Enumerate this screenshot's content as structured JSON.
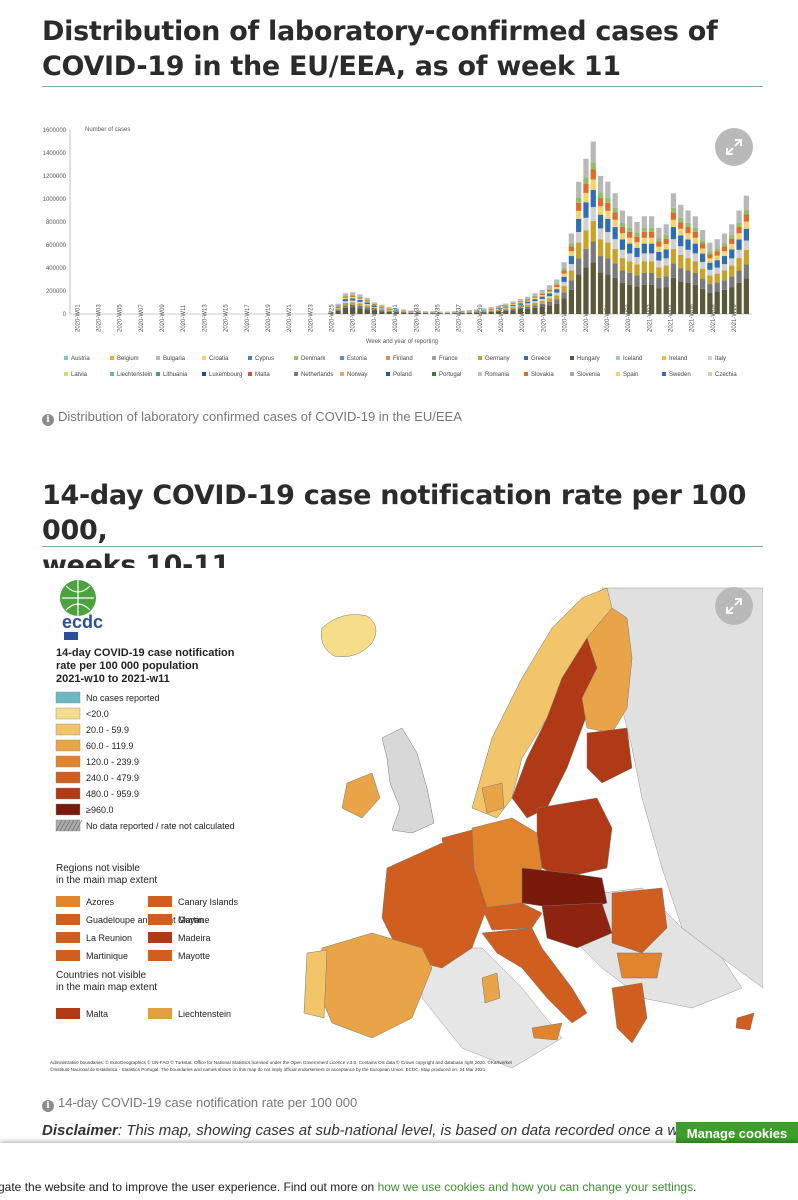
{
  "section1": {
    "title_line1": "Distribution of laboratory-confirmed cases of",
    "title_line2": "COVID-19 in the EU/EEA, as of week 11",
    "caption": "Distribution of laboratory confirmed cases of COVID-19 in the EU/EEA"
  },
  "section2": {
    "title_line1": "14-day COVID-19 case notification rate per 100 000,",
    "title_line2": "weeks 10-11",
    "caption": "14-day COVID-19 case notification rate per 100 000"
  },
  "icons": {
    "expand": "expand-icon",
    "info": "info-icon"
  },
  "chart_data": {
    "type": "bar",
    "stacked": true,
    "ylabel": "Number of cases",
    "xlabel": "Week and year of reporting",
    "ylim": [
      0,
      1600000
    ],
    "yticks": [
      "1600000",
      "1400000",
      "1200000",
      "1000000",
      "800000",
      "600000",
      "400000",
      "200000",
      "0"
    ],
    "legend_position": "bottom",
    "legend": [
      "Austria",
      "Belgium",
      "Bulgaria",
      "Croatia",
      "Cyprus",
      "Denmark",
      "Estonia",
      "Finland",
      "France",
      "Germany",
      "Greece",
      "Hungary",
      "Iceland",
      "Ireland",
      "Italy",
      "Latvia",
      "Liechtenstein",
      "Lithuania",
      "Luxembourg",
      "Malta",
      "Netherlands",
      "Norway",
      "Poland",
      "Portugal",
      "Romania",
      "Slovakia",
      "Slovenia",
      "Spain",
      "Sweden",
      "Czechia"
    ],
    "legend_colors": [
      "#7ec4cf",
      "#f0a830",
      "#b8b8b8",
      "#f5d27a",
      "#4a7fc1",
      "#8fbf6a",
      "#5b8fc9",
      "#e38b5a",
      "#9e9e9e",
      "#c9a227",
      "#2f6db5",
      "#5a5a3a",
      "#a3c4e0",
      "#f4b942",
      "#d0d0d0",
      "#e8d36a",
      "#6ab0c4",
      "#4d9a8a",
      "#1f4e9c",
      "#d2563b",
      "#7a7a7a",
      "#f7a35c",
      "#2c5aa0",
      "#3f7a3a",
      "#c0c0c0",
      "#e06a2a",
      "#a8a8a8",
      "#f3d36b",
      "#3b68b0",
      "#c8d89a"
    ],
    "series_note": "",
    "x": [
      "2020-W01",
      "2020-W03",
      "2020-W05",
      "2020-W07",
      "2020-W09",
      "2020-W11",
      "2020-W13",
      "2020-W15",
      "2020-W17",
      "2020-W19",
      "2020-W21",
      "2020-W23",
      "2020-W25",
      "2020-W27",
      "2020-W29",
      "2020-W31",
      "2020-W33",
      "2020-W35",
      "2020-W37",
      "2020-W39",
      "2020-W41",
      "2020-W43",
      "2020-W45",
      "2020-W47",
      "2020-W49",
      "2020-W51",
      "2020-W53",
      "2021-W02",
      "2021-W04",
      "2021-W06",
      "2021-W08",
      "2021-W10"
    ],
    "totals": [
      0,
      0,
      0,
      0,
      0,
      0,
      0,
      0,
      0,
      0,
      0,
      0,
      0,
      0,
      0,
      0,
      0,
      0,
      0,
      0,
      0,
      0,
      0,
      0,
      0,
      0,
      0,
      0,
      0,
      0,
      0,
      0,
      0,
      0,
      0,
      20000,
      90000,
      180000,
      190000,
      170000,
      140000,
      100000,
      80000,
      60000,
      50000,
      40000,
      30000,
      30000,
      25000,
      25000,
      22000,
      22000,
      25000,
      30000,
      35000,
      40000,
      50000,
      60000,
      70000,
      90000,
      110000,
      130000,
      150000,
      180000,
      210000,
      250000,
      300000,
      450000,
      700000,
      1150000,
      1350000,
      1500000,
      1200000,
      1150000,
      1050000,
      900000,
      850000,
      800000,
      850000,
      850000,
      750000,
      780000,
      1050000,
      950000,
      900000,
      850000,
      730000,
      620000,
      650000,
      700000,
      780000,
      900000,
      1030000
    ],
    "top_segment_ratios": [
      0.3,
      0.12,
      0.12,
      0.08,
      0.1,
      0.06,
      0.06,
      0.04,
      0.12
    ]
  },
  "map": {
    "logo_text": "ecdc",
    "legend_title_line1": "14-day COVID-19 case notification",
    "legend_title_line2": "rate per 100 000 population",
    "legend_title_line3": "2021-w10 to 2021-w11",
    "classes": [
      {
        "label": "No cases reported",
        "color": "#6bb8c4"
      },
      {
        "label": "<20.0",
        "color": "#f6dd8a"
      },
      {
        "label": "20.0 - 59.9",
        "color": "#f2c56a"
      },
      {
        "label": "60.0 - 119.9",
        "color": "#eaa448"
      },
      {
        "label": "120.0 - 239.9",
        "color": "#e0842e"
      },
      {
        "label": "240.0 - 479.9",
        "color": "#cf5e1f"
      },
      {
        "label": "480.0 - 959.9",
        "color": "#b03a16"
      },
      {
        "label": "≥960.0",
        "color": "#7a1a0a"
      },
      {
        "label": "No data reported / rate not calculated",
        "color": "#aaaaaa"
      }
    ],
    "regions_title_line1": "Regions not visible",
    "regions_title_line2": "in the main map extent",
    "regions": [
      {
        "label": "Azores",
        "color": "#e0842e"
      },
      {
        "label": "Canary Islands",
        "color": "#cf5e1f"
      },
      {
        "label": "Guadeloupe and Saint Martin",
        "color": "#cf5e1f"
      },
      {
        "label": "Guyane",
        "color": "#cf5e1f"
      },
      {
        "label": "La Reunion",
        "color": "#cf5e1f"
      },
      {
        "label": "Madeira",
        "color": "#b03a16"
      },
      {
        "label": "Martinique",
        "color": "#cf5e1f"
      },
      {
        "label": "Mayotte",
        "color": "#cf5e1f"
      }
    ],
    "countries_title_line1": "Countries not visible",
    "countries_title_line2": "in the main map extent",
    "countries": [
      {
        "label": "Malta",
        "color": "#b03a16"
      },
      {
        "label": "Liechtenstein",
        "color": "#e0a040"
      }
    ],
    "credit_line1": "Administrative boundaries: © EuroGeographics © UN-FAO © Turkstat. Office for National Statistics licensed under the Open Government Licence v.3.0. Contains OS data © Crown copyright and database right 2020. ©Kartverket",
    "credit_line2": "©Instituto Nacional de Estatística - Statistics Portugal. The boundaries and names shown on this map do not imply official endorsement or acceptance by the European Union. ECDC. Map produced on: 24 Mar 2021"
  },
  "disclaimer": {
    "label": "Disclaimer",
    "text": ": This map, showing cases at sub-national level, is based on data recorded once a w"
  },
  "cookie": {
    "manage_label": "Manage cookies",
    "text": "gate the website and to improve the user experience. Find out more on ",
    "link_text": "how we use cookies and how you can change your settings",
    "end": "."
  }
}
